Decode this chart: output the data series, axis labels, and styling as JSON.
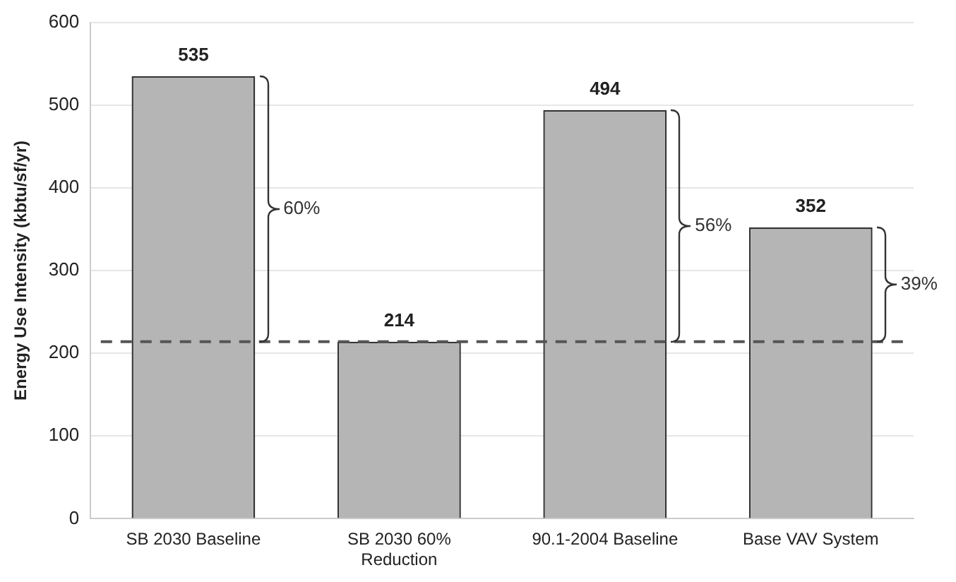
{
  "chart_data": {
    "type": "bar",
    "ylabel": "Energy Use Intensity (kbtu/sf/yr)",
    "categories": [
      "SB 2030 Baseline",
      "SB 2030 60% Reduction",
      "90.1-2004 Baseline",
      "Base VAV System"
    ],
    "values": [
      535,
      214,
      494,
      352
    ],
    "color": "#b5b5b5",
    "data_labels": true,
    "ylim": [
      0,
      600
    ],
    "yticks": [
      0,
      100,
      200,
      300,
      400,
      500,
      600
    ],
    "grid": "y",
    "legend": false,
    "ref_lines": [
      {
        "axis": "y",
        "value": 214,
        "color": "#555555",
        "line_style": "dashed"
      }
    ],
    "annotations": [
      "60%",
      "56%",
      "39%"
    ]
  }
}
